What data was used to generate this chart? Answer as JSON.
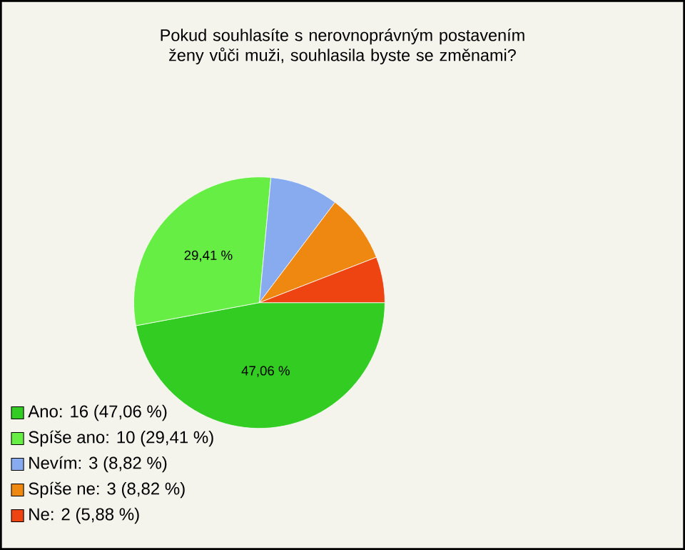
{
  "chart_data": {
    "type": "pie",
    "title": "Pokud souhlasíte s nerovnoprávným postavením ženy vůči muži, souhlasila byste se změnami?",
    "categories": [
      "Ano: 16 (47,06 %)",
      "Spíše ano: 10 (29,41 %)",
      "Nevím: 3 (8,82 %)",
      "Spíše ne: 3 (8,82 %)",
      "Ne: 2 (5,88 %)"
    ],
    "values": [
      47.06,
      29.41,
      8.82,
      8.82,
      5.88
    ],
    "value_labels": [
      "47,06 %",
      "29,41 %",
      null,
      null,
      null
    ],
    "colors": [
      "#33cc22",
      "#66ee44",
      "#88aaee",
      "#ee8811",
      "#ee4411"
    ],
    "legend": "bottom left"
  }
}
